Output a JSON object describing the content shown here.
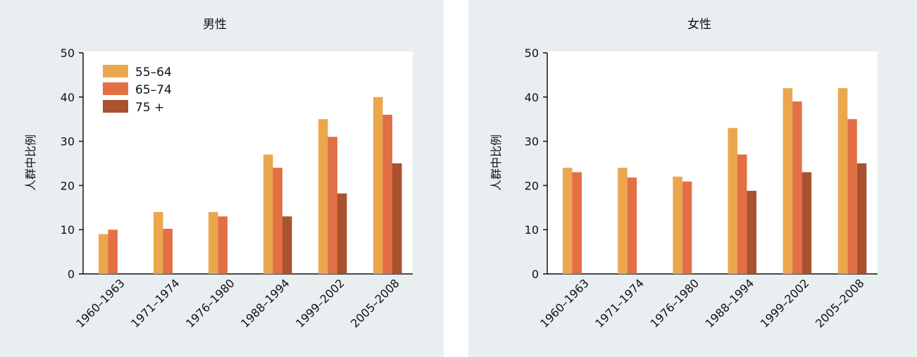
{
  "chart_data": [
    {
      "type": "bar",
      "title": "男性",
      "ylabel": "人群中比例",
      "xlabel": "",
      "ylim": [
        0,
        50
      ],
      "yticks": [
        0,
        10,
        20,
        30,
        40,
        50
      ],
      "categories": [
        "1960–1963",
        "1971–1974",
        "1976–1980",
        "1988–1994",
        "1999–2002",
        "2005–2008"
      ],
      "legend_position": "top-left",
      "series": [
        {
          "name": "55–64",
          "color": "#eaa74d",
          "values": [
            9,
            14,
            14,
            27,
            35,
            40
          ]
        },
        {
          "name": "65–74",
          "color": "#e36f45",
          "values": [
            10,
            10.2,
            13,
            24,
            31,
            36
          ]
        },
        {
          "name": "75 +",
          "color": "#a8522f",
          "values": [
            null,
            null,
            null,
            13,
            18.2,
            25
          ]
        }
      ]
    },
    {
      "type": "bar",
      "title": "女性",
      "ylabel": "人群中比例",
      "xlabel": "",
      "ylim": [
        0,
        50
      ],
      "yticks": [
        0,
        10,
        20,
        30,
        40,
        50
      ],
      "categories": [
        "1960–1963",
        "1971–1974",
        "1976–1980",
        "1988–1994",
        "1999–2002",
        "2005–2008"
      ],
      "series": [
        {
          "name": "55–64",
          "color": "#eaa74d",
          "values": [
            24,
            24,
            22,
            33,
            42,
            42
          ]
        },
        {
          "name": "65–74",
          "color": "#e36f45",
          "values": [
            23,
            21.8,
            20.9,
            27,
            39,
            35
          ]
        },
        {
          "name": "75 +",
          "color": "#a8522f",
          "values": [
            null,
            null,
            null,
            18.8,
            23,
            25
          ]
        }
      ]
    }
  ]
}
